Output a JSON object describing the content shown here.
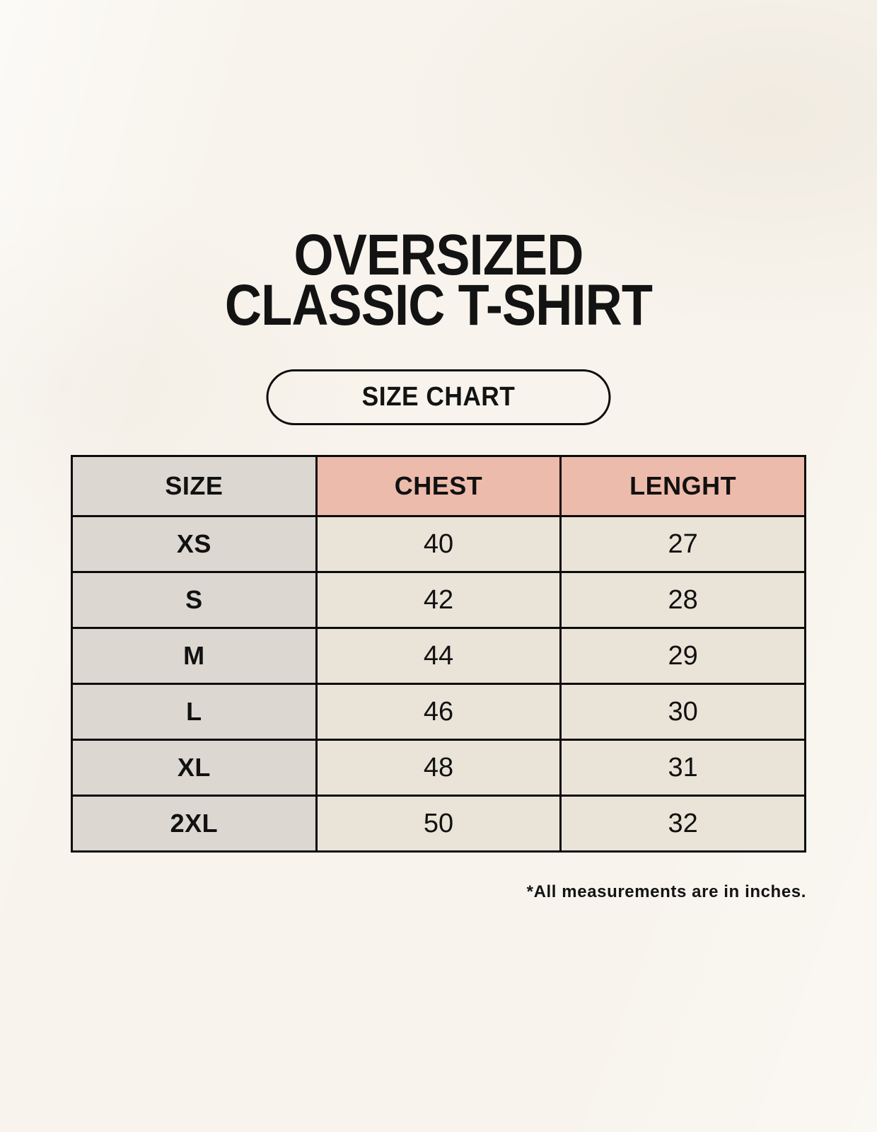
{
  "title": {
    "line1": "OVERSIZED",
    "line2": "CLASSIC T-SHIRT"
  },
  "size_chart_button": {
    "label": "SIZE CHART"
  },
  "table": {
    "headers": [
      "SIZE",
      "CHEST",
      "LENGHT"
    ],
    "rows": [
      {
        "size": "XS",
        "chest": "40",
        "length": "27"
      },
      {
        "size": "S",
        "chest": "42",
        "length": "28"
      },
      {
        "size": "M",
        "chest": "44",
        "length": "29"
      },
      {
        "size": "L",
        "chest": "46",
        "length": "30"
      },
      {
        "size": "XL",
        "chest": "48",
        "length": "31"
      },
      {
        "size": "2XL",
        "chest": "50",
        "length": "32"
      }
    ]
  },
  "footnote": "*All measurements are in inches.",
  "colors": {
    "page_background": "#f8f4ed",
    "header_pink": "#edbbab",
    "size_column_gray": "#ddd7d1",
    "value_cell_beige": "#eae4d8",
    "border_black": "#0c0c0c",
    "text_black": "#131313"
  },
  "chart_data": {
    "type": "table",
    "title": "OVERSIZED CLASSIC T-SHIRT",
    "subtitle": "SIZE CHART",
    "columns": [
      "SIZE",
      "CHEST",
      "LENGHT"
    ],
    "rows": [
      [
        "XS",
        40,
        27
      ],
      [
        "S",
        42,
        28
      ],
      [
        "M",
        44,
        29
      ],
      [
        "L",
        46,
        30
      ],
      [
        "XL",
        48,
        31
      ],
      [
        "2XL",
        50,
        32
      ]
    ],
    "units_note": "*All measurements are in inches."
  }
}
